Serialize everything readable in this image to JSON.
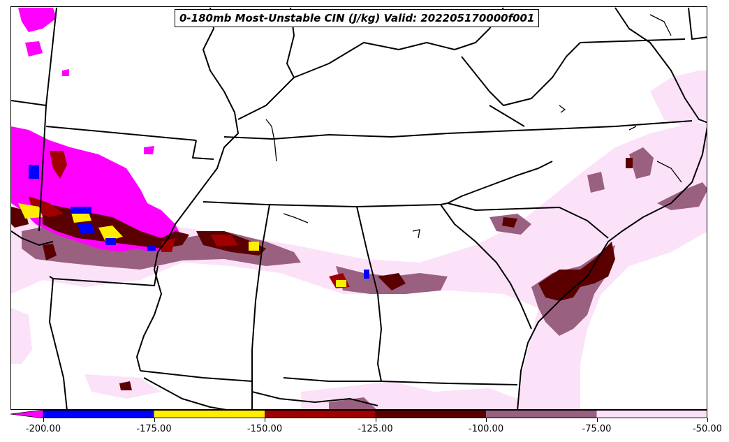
{
  "title": "0-180mb Most-Unstable CIN (J/kg) Valid: 202205170000f001",
  "colorbar": {
    "under_color": "#ff00ff",
    "bins": [
      {
        "from": -200,
        "to": -175,
        "color": "#0000ff"
      },
      {
        "from": -175,
        "to": -150,
        "color": "#ffee00"
      },
      {
        "from": -150,
        "to": -125,
        "color": "#a00000"
      },
      {
        "from": -125,
        "to": -100,
        "color": "#5a0000"
      },
      {
        "from": -100,
        "to": -75,
        "color": "#9a6080"
      },
      {
        "from": -75,
        "to": -50,
        "color": "#fbe2f8"
      }
    ],
    "ticks": [
      "-200.00",
      "-175.00",
      "-150.00",
      "-125.00",
      "-100.00",
      "-75.00",
      "-50.00"
    ]
  },
  "colors": {
    "magenta": "#ff00ff",
    "blue": "#0000ff",
    "yellow": "#ffee00",
    "red": "#a00000",
    "darkred": "#5a0000",
    "mauve": "#9a6080",
    "pink": "#fbe2f8",
    "boundary": "#000000"
  }
}
